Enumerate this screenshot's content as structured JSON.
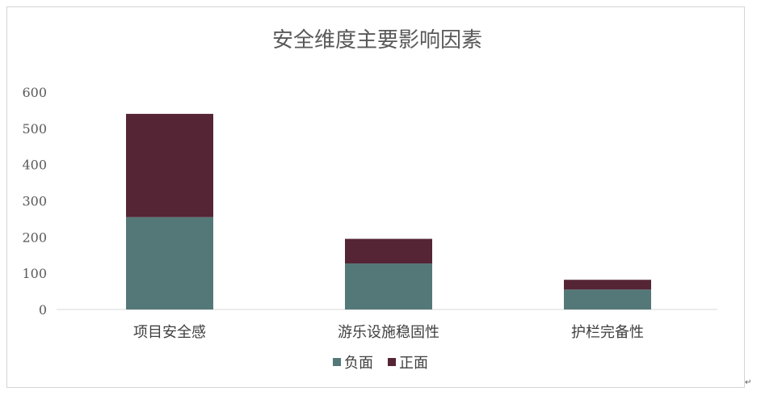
{
  "chart_data": {
    "type": "bar",
    "stacked": true,
    "title": "安全维度主要影响因素",
    "categories": [
      "项目安全感",
      "游乐设施稳固性",
      "护栏完备性"
    ],
    "series": [
      {
        "name": "负面",
        "color": "#547878",
        "values": [
          255,
          127,
          55
        ]
      },
      {
        "name": "正面",
        "color": "#552535",
        "values": [
          285,
          68,
          27
        ]
      }
    ],
    "yticks": [
      0,
      100,
      200,
      300,
      400,
      500,
      600
    ],
    "ylim": [
      0,
      600
    ],
    "grid": false,
    "legend": "bottom"
  },
  "page": {
    "paragraph_mark": "↵"
  }
}
